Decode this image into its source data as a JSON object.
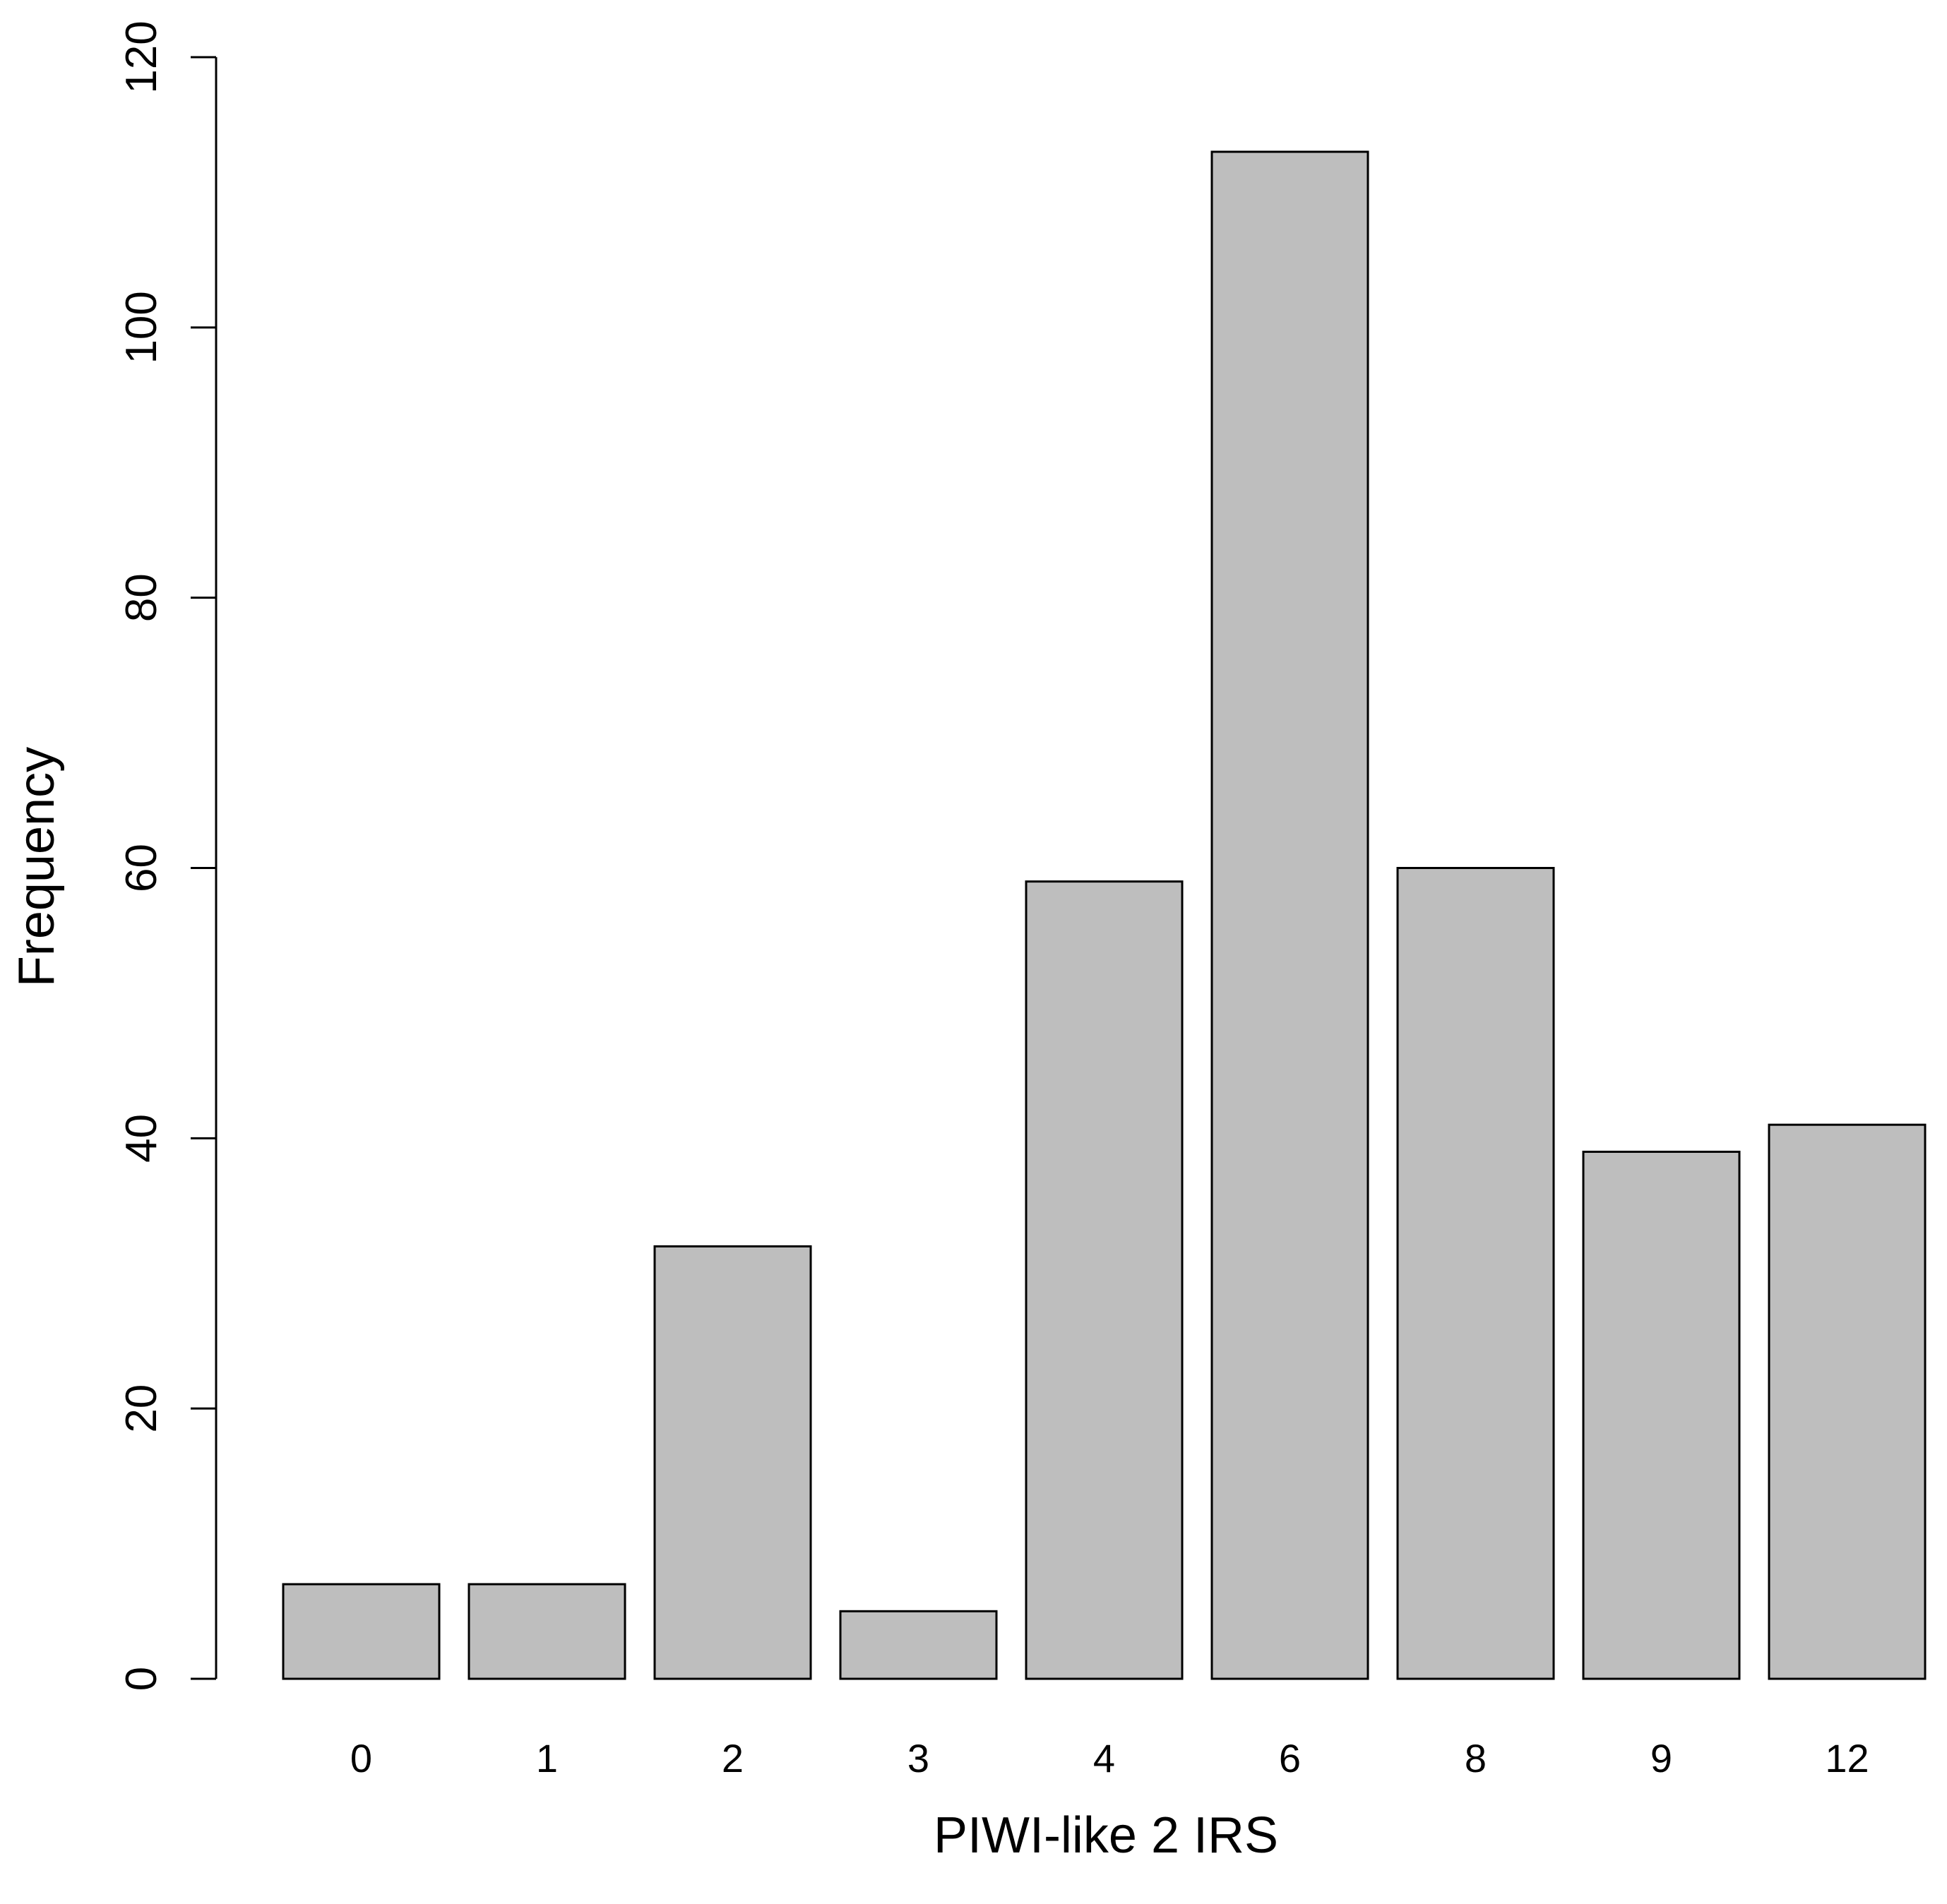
{
  "chart_data": {
    "type": "bar",
    "title": "",
    "xlabel": "PIWI-like 2 IRS",
    "ylabel": "Frequency",
    "categories": [
      "0",
      "1",
      "2",
      "3",
      "4",
      "6",
      "8",
      "9",
      "12"
    ],
    "values": [
      7,
      7,
      32,
      5,
      59,
      113,
      60,
      39,
      41
    ],
    "ylim": [
      0,
      120
    ],
    "yticks": [
      0,
      20,
      40,
      60,
      80,
      100,
      120
    ],
    "grid": false,
    "legend": "none",
    "colors": {
      "bar_fill": "#bebebe",
      "bar_stroke": "#000000",
      "axis": "#000000",
      "text": "#000000"
    }
  }
}
